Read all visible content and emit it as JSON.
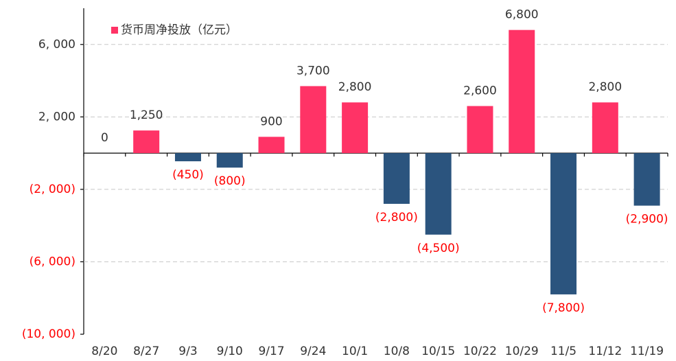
{
  "chart_data": {
    "type": "bar",
    "categories": [
      "8/20",
      "8/27",
      "9/3",
      "9/10",
      "9/17",
      "9/24",
      "10/1",
      "10/8",
      "10/15",
      "10/22",
      "10/29",
      "11/5",
      "11/12",
      "11/19"
    ],
    "series": [
      {
        "name": "货币周净投放（亿元）",
        "color": "#ff3366",
        "negative_color": "#2b547e",
        "values": [
          0,
          1250,
          -450,
          -800,
          900,
          3700,
          2800,
          -2800,
          -4500,
          2600,
          6800,
          -7800,
          2800,
          -2900
        ],
        "value_labels": [
          "0",
          "1,250",
          "(450)",
          "(800)",
          "900",
          "3,700",
          "2,800",
          "(2,800)",
          "(4,500)",
          "2,600",
          "6,800",
          "(7,800)",
          "2,800",
          "(2,900)"
        ]
      }
    ],
    "ylim": [
      -10000,
      8000
    ],
    "yticks": [
      {
        "value": 6000,
        "label": "6, 000"
      },
      {
        "value": 2000,
        "label": "2, 000"
      },
      {
        "value": -2000,
        "label": "(2, 000)"
      },
      {
        "value": -6000,
        "label": "(6, 000)"
      },
      {
        "value": -10000,
        "label": "(10, 000)"
      }
    ],
    "grid": true,
    "legend": "top-left"
  }
}
